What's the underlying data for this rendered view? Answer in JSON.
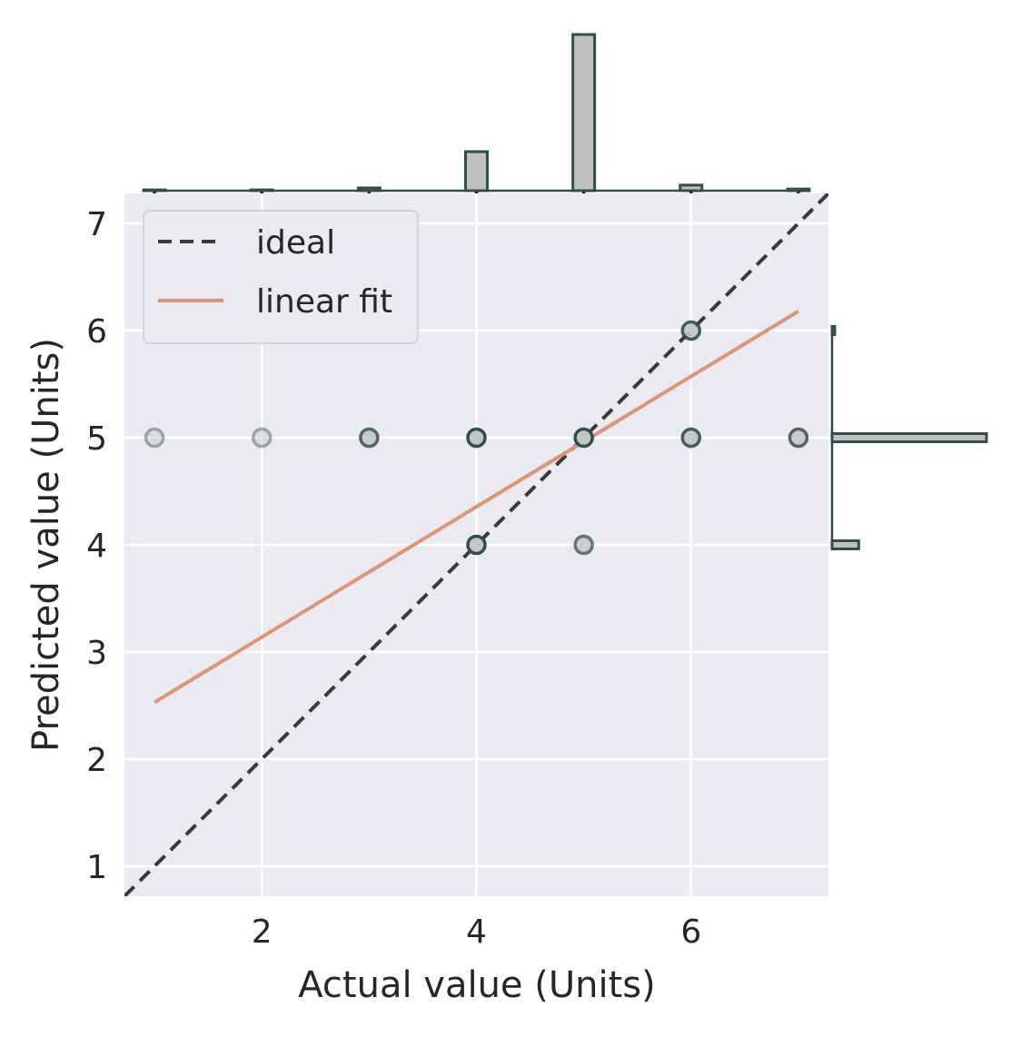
{
  "chart_data": {
    "type": "scatter",
    "title": "",
    "xlabel": "Actual value (Units)",
    "ylabel": "Predicted value (Units)",
    "xlim": [
      0.72,
      7.28
    ],
    "ylim": [
      0.72,
      7.28
    ],
    "x_ticks": [
      2,
      4,
      6
    ],
    "y_ticks": [
      1,
      2,
      3,
      4,
      5,
      6,
      7
    ],
    "grid": true,
    "legend_position": "top-left",
    "colors": {
      "plot_background": "#eaeaf2",
      "grid": "#ffffff",
      "point_fill": "#c4c4c4",
      "point_edge": "#2f4f4f",
      "ideal_line": "#3a3a3a",
      "fit_line": "#e0956f",
      "hist_fill": "#c0c0c0",
      "hist_edge": "#2f4f4f",
      "tick_mark": "#262626"
    },
    "legend": [
      {
        "key": "ideal",
        "label": "ideal",
        "style": "dashed"
      },
      {
        "key": "fit",
        "label": "linear fit",
        "style": "solid"
      }
    ],
    "points": [
      {
        "x": 1,
        "y": 5,
        "opacity": 0.45
      },
      {
        "x": 2,
        "y": 5,
        "opacity": 0.45
      },
      {
        "x": 3,
        "y": 5,
        "opacity": 0.85
      },
      {
        "x": 4,
        "y": 5,
        "opacity": 1.0
      },
      {
        "x": 4,
        "y": 4,
        "opacity": 1.0
      },
      {
        "x": 5,
        "y": 5,
        "opacity": 1.0
      },
      {
        "x": 5,
        "y": 4,
        "opacity": 0.75
      },
      {
        "x": 6,
        "y": 6,
        "opacity": 0.9
      },
      {
        "x": 6,
        "y": 5,
        "opacity": 0.9
      },
      {
        "x": 7,
        "y": 5,
        "opacity": 0.85
      }
    ],
    "ideal_line": {
      "x": [
        0.72,
        7.28
      ],
      "y": [
        0.72,
        7.28
      ]
    },
    "linear_fit": {
      "x": [
        1,
        7
      ],
      "y": [
        2.53,
        6.18
      ]
    },
    "marginal_x": {
      "bins": [
        {
          "x": 1,
          "count": 0.3
        },
        {
          "x": 2,
          "count": 0.3
        },
        {
          "x": 3,
          "count": 1
        },
        {
          "x": 4,
          "count": 14
        },
        {
          "x": 5,
          "count": 56
        },
        {
          "x": 6,
          "count": 2
        },
        {
          "x": 7,
          "count": 0.6
        }
      ],
      "ticks": [
        1,
        2,
        3,
        4,
        5,
        6,
        7
      ]
    },
    "marginal_y": {
      "bins": [
        {
          "y": 4,
          "count": 10
        },
        {
          "y": 5,
          "count": 58
        },
        {
          "y": 6,
          "count": 1
        }
      ],
      "ticks": [
        1,
        1.5,
        2,
        2.5,
        3,
        3.5,
        4,
        4.5,
        5,
        5.5,
        6,
        6.5,
        7
      ]
    }
  }
}
